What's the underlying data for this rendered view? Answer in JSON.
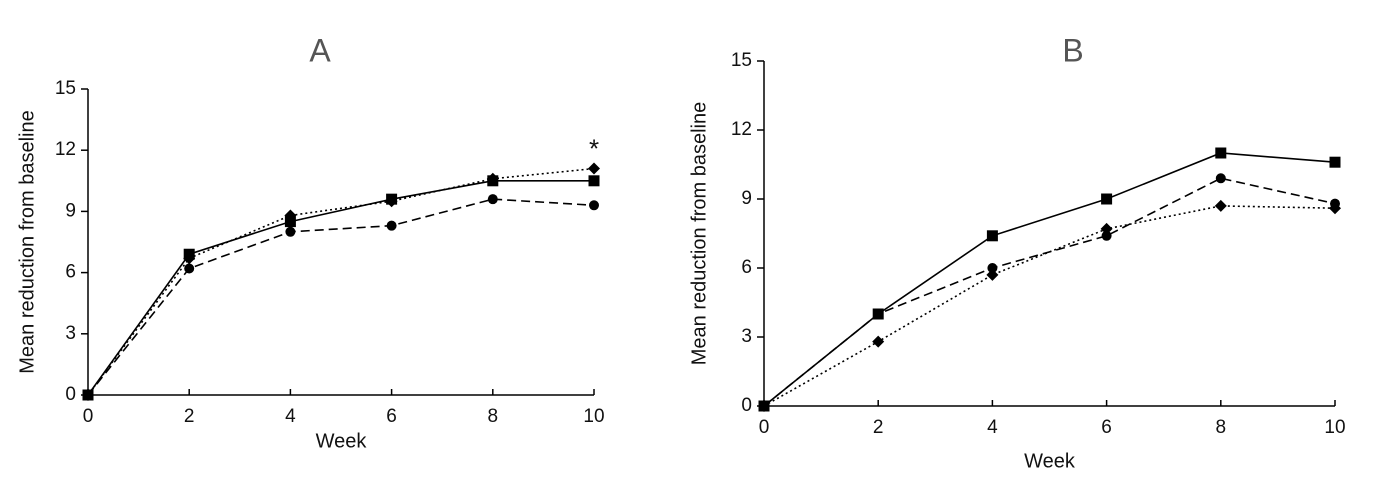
{
  "chart_data": [
    {
      "type": "line",
      "title": "A",
      "xlabel": "Week",
      "ylabel": "Mean reduction from baseline",
      "x": [
        0,
        2,
        4,
        6,
        8,
        10
      ],
      "xlim": [
        0,
        10
      ],
      "xticks": [
        0,
        2,
        4,
        6,
        8,
        10
      ],
      "ylim": [
        0,
        15
      ],
      "yticks": [
        0,
        3,
        6,
        9,
        12,
        15
      ],
      "grid": false,
      "annotation": "*",
      "series": [
        {
          "color": "#000000",
          "marker": "square",
          "dash": "solid",
          "values": [
            0,
            6.9,
            8.5,
            9.6,
            10.5,
            10.5
          ]
        },
        {
          "color": "#000000",
          "marker": "diamond",
          "dash": "dotted",
          "values": [
            0,
            6.7,
            8.8,
            9.5,
            10.6,
            11.1
          ]
        },
        {
          "color": "#000000",
          "marker": "circle",
          "dash": "dashed",
          "values": [
            0,
            6.2,
            8.0,
            8.3,
            9.6,
            9.3
          ]
        }
      ]
    },
    {
      "type": "line",
      "title": "B",
      "xlabel": "Week",
      "ylabel": "Mean reduction from baseline",
      "x": [
        0,
        2,
        4,
        6,
        8,
        10
      ],
      "xlim": [
        0,
        10
      ],
      "xticks": [
        0,
        2,
        4,
        6,
        8,
        10
      ],
      "ylim": [
        0,
        15
      ],
      "yticks": [
        0,
        3,
        6,
        9,
        12,
        15
      ],
      "grid": false,
      "series": [
        {
          "color": "#000000",
          "marker": "square",
          "dash": "solid",
          "values": [
            0,
            4.0,
            7.4,
            9.0,
            11.0,
            10.6
          ]
        },
        {
          "color": "#000000",
          "marker": "circle",
          "dash": "dashed",
          "values": [
            0,
            4.0,
            6.0,
            7.4,
            9.9,
            8.8
          ]
        },
        {
          "color": "#000000",
          "marker": "diamond",
          "dash": "dotted",
          "values": [
            0,
            2.8,
            5.7,
            7.7,
            8.7,
            8.6
          ]
        }
      ]
    }
  ]
}
